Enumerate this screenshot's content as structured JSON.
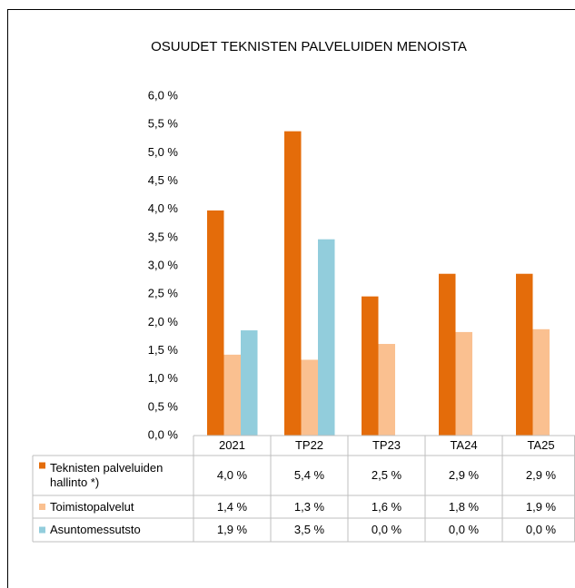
{
  "chart_data": {
    "type": "bar",
    "title": "OSUUDET TEKNISTEN PALVELUIDEN MENOISTA",
    "categories": [
      "2021",
      "TP22",
      "TP23",
      "TA24",
      "TA25"
    ],
    "series": [
      {
        "name": "Teknisten palveluiden hallinto *)",
        "color": "#e46c0a",
        "values": [
          3.98,
          5.38,
          2.46,
          2.86,
          2.86
        ],
        "value_labels": [
          "4,0 %",
          "5,4 %",
          "2,5 %",
          "2,9 %",
          "2,9 %"
        ]
      },
      {
        "name": "Toimistopalvelut",
        "color": "#fac090",
        "values": [
          1.43,
          1.34,
          1.62,
          1.83,
          1.88
        ],
        "value_labels": [
          "1,4 %",
          "1,3 %",
          "1,6 %",
          "1,8 %",
          "1,9 %"
        ]
      },
      {
        "name": "Asuntomessutsto",
        "color": "#92cddc",
        "values": [
          1.86,
          3.47,
          0,
          0,
          0
        ],
        "value_labels": [
          "1,9 %",
          "3,5 %",
          "0,0 %",
          "0,0 %",
          "0,0 %"
        ]
      }
    ],
    "ylim": [
      0,
      6
    ],
    "yticks": [
      {
        "value": 0,
        "label": "0,0 %"
      },
      {
        "value": 0.5,
        "label": "0,5 %"
      },
      {
        "value": 1,
        "label": "1,0 %"
      },
      {
        "value": 1.5,
        "label": "1,5 %"
      },
      {
        "value": 2,
        "label": "2,0 %"
      },
      {
        "value": 2.5,
        "label": "2,5 %"
      },
      {
        "value": 3,
        "label": "3,0 %"
      },
      {
        "value": 3.5,
        "label": "3,5 %"
      },
      {
        "value": 4,
        "label": "4,0 %"
      },
      {
        "value": 4.5,
        "label": "4,5 %"
      },
      {
        "value": 5,
        "label": "5,0 %"
      },
      {
        "value": 5.5,
        "label": "5,5 %"
      },
      {
        "value": 6,
        "label": "6,0 %"
      }
    ],
    "grid": false,
    "legend": "table"
  }
}
